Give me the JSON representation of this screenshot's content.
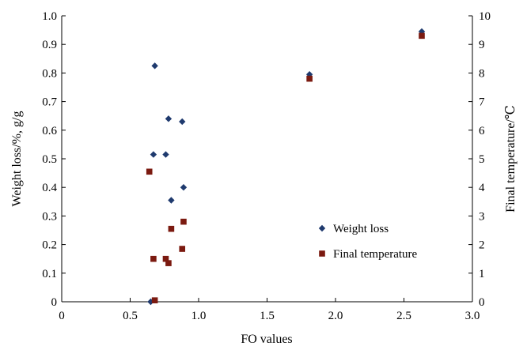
{
  "chart_data": {
    "type": "scatter",
    "title": "",
    "xlabel": "FO values",
    "ylabel": "Weight loss/%, g/g",
    "y2label": "Final temperature/℃",
    "xlim": [
      0,
      3.0
    ],
    "ylim": [
      0,
      1.0
    ],
    "y2lim": [
      0,
      10
    ],
    "x_ticks": [
      "0",
      "0.5",
      "1.0",
      "1.5",
      "2.0",
      "2.5",
      "3.0"
    ],
    "y_ticks": [
      "0",
      "0.1",
      "0.2",
      "0.3",
      "0.4",
      "0.5",
      "0.6",
      "0.7",
      "0.8",
      "0.9",
      "1.0"
    ],
    "y2_ticks": [
      "0",
      "1",
      "2",
      "3",
      "4",
      "5",
      "6",
      "7",
      "8",
      "9",
      "10"
    ],
    "grid": false,
    "legend_position": "right",
    "series": [
      {
        "name": "Weight loss",
        "axis": "left",
        "marker": "diamond",
        "color": "#1f3a6e",
        "points": [
          {
            "x": 0.65,
            "y": 0.0
          },
          {
            "x": 0.68,
            "y": 0.825
          },
          {
            "x": 0.67,
            "y": 0.515
          },
          {
            "x": 0.76,
            "y": 0.515
          },
          {
            "x": 0.78,
            "y": 0.64
          },
          {
            "x": 0.88,
            "y": 0.63
          },
          {
            "x": 0.89,
            "y": 0.4
          },
          {
            "x": 0.8,
            "y": 0.355
          },
          {
            "x": 1.81,
            "y": 0.795
          },
          {
            "x": 2.63,
            "y": 0.945
          }
        ]
      },
      {
        "name": "Final temperature",
        "axis": "right",
        "marker": "square",
        "color": "#7b1a10",
        "points": [
          {
            "x": 0.64,
            "y": 4.55
          },
          {
            "x": 0.67,
            "y": 1.5
          },
          {
            "x": 0.68,
            "y": 0.05
          },
          {
            "x": 0.76,
            "y": 1.5
          },
          {
            "x": 0.78,
            "y": 1.35
          },
          {
            "x": 0.8,
            "y": 2.55
          },
          {
            "x": 0.88,
            "y": 1.85
          },
          {
            "x": 0.89,
            "y": 2.8
          },
          {
            "x": 1.81,
            "y": 7.8
          },
          {
            "x": 2.63,
            "y": 9.3
          }
        ]
      }
    ]
  }
}
